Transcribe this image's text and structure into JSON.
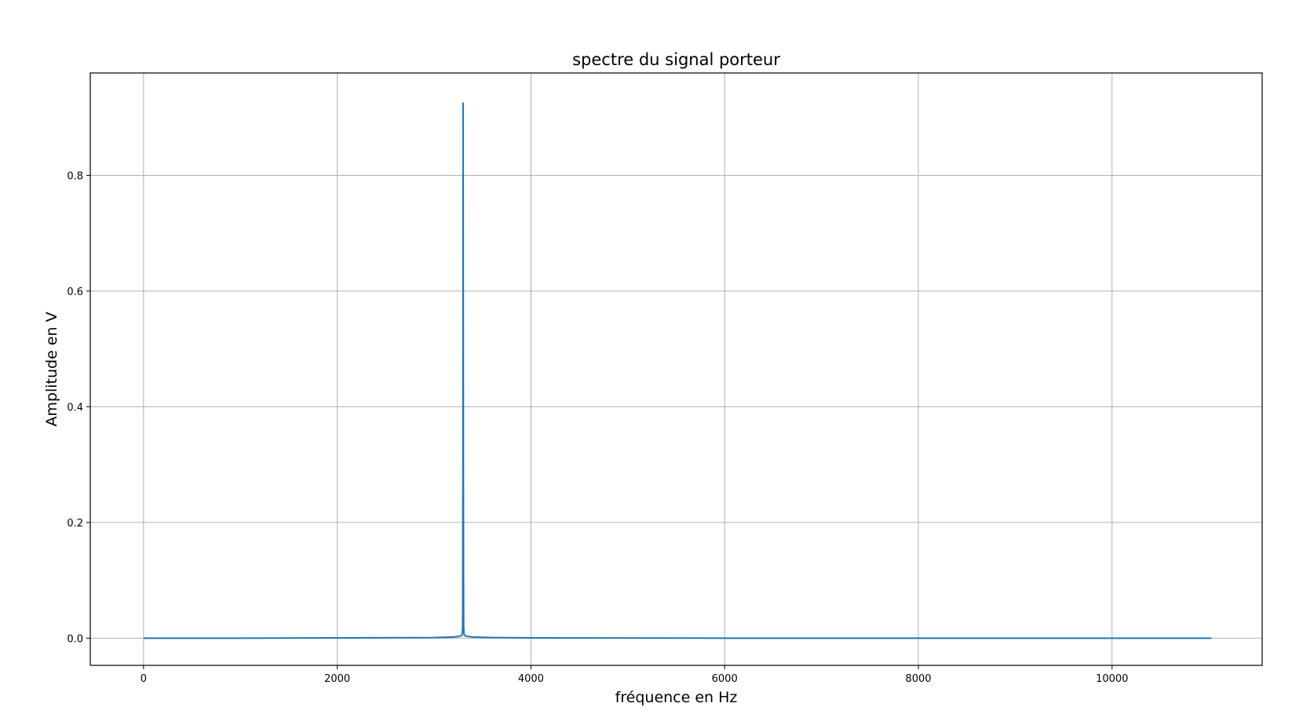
{
  "chart_data": {
    "type": "line",
    "title": "spectre du signal porteur",
    "xlabel": "fréquence en Hz",
    "ylabel": "Amplitude en V",
    "xlim": [
      -550,
      11550
    ],
    "ylim": [
      -0.047,
      0.977
    ],
    "x_ticks": [
      0,
      2000,
      4000,
      6000,
      8000,
      10000
    ],
    "x_tick_labels": [
      "0",
      "2000",
      "4000",
      "6000",
      "8000",
      "10000"
    ],
    "y_ticks": [
      0.0,
      0.2,
      0.4,
      0.6,
      0.8
    ],
    "y_tick_labels": [
      "0.0",
      "0.2",
      "0.4",
      "0.6",
      "0.8"
    ],
    "grid": true,
    "series": [
      {
        "color": "#1f77b4",
        "x": [
          0,
          1000,
          2000,
          3000,
          3200,
          3250,
          3280,
          3290,
          3295,
          3298,
          3300,
          3302,
          3305,
          3310,
          3320,
          3350,
          3400,
          3600,
          4000,
          6000,
          8000,
          10000,
          11025
        ],
        "y": [
          0.0,
          0.0,
          0.0005,
          0.001,
          0.002,
          0.003,
          0.004,
          0.006,
          0.02,
          0.3,
          0.925,
          0.3,
          0.02,
          0.006,
          0.004,
          0.003,
          0.002,
          0.001,
          0.0005,
          0.0,
          0.0,
          0.0,
          0.0
        ]
      }
    ]
  }
}
